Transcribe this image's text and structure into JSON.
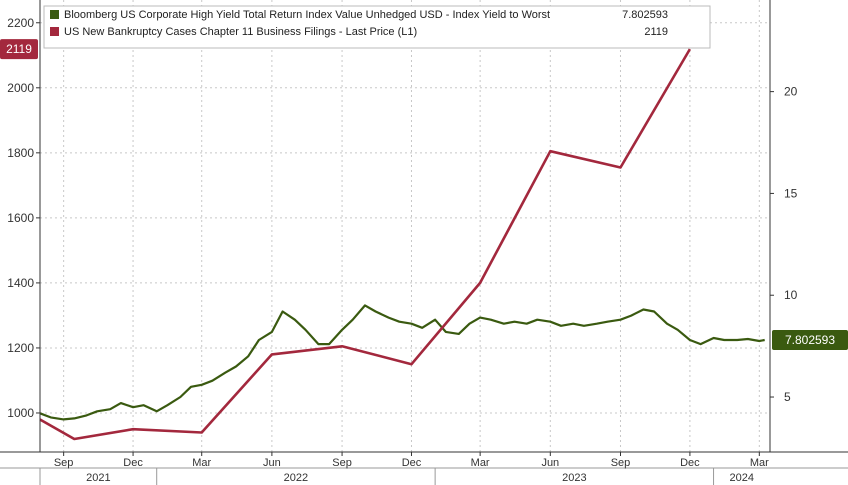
{
  "chart_data": {
    "type": "line",
    "legend_placement": "top-left",
    "grid": true,
    "x_range": [
      "2021-08-01",
      "2024-03-15"
    ],
    "y_left": {
      "label": "",
      "ticks": [
        1000,
        1200,
        1400,
        1600,
        1800,
        2000,
        2200
      ],
      "range": [
        880,
        2270
      ]
    },
    "y_right": {
      "label": "",
      "ticks": [
        5,
        10,
        15,
        20
      ],
      "range": [
        2.3,
        24.5
      ]
    },
    "x_month_labels": [
      {
        "date": "2021-09-01",
        "label": "Sep"
      },
      {
        "date": "2021-12-01",
        "label": "Dec"
      },
      {
        "date": "2022-03-01",
        "label": "Mar"
      },
      {
        "date": "2022-06-01",
        "label": "Jun"
      },
      {
        "date": "2022-09-01",
        "label": "Sep"
      },
      {
        "date": "2022-12-01",
        "label": "Dec"
      },
      {
        "date": "2023-03-01",
        "label": "Mar"
      },
      {
        "date": "2023-06-01",
        "label": "Jun"
      },
      {
        "date": "2023-09-01",
        "label": "Sep"
      },
      {
        "date": "2023-12-01",
        "label": "Dec"
      },
      {
        "date": "2024-03-01",
        "label": "Mar"
      }
    ],
    "x_year_labels": [
      {
        "start": "2021-08-01",
        "end": "2022-01-01",
        "label": "2021"
      },
      {
        "start": "2022-01-01",
        "end": "2023-01-01",
        "label": "2022"
      },
      {
        "start": "2023-01-01",
        "end": "2024-01-01",
        "label": "2023"
      },
      {
        "start": "2024-01-01",
        "end": "2024-03-15",
        "label": "2024"
      }
    ],
    "series": [
      {
        "name": "Bloomberg US Corporate High Yield Total Return Index Value Unhedged USD - Index Yield to Worst",
        "axis": "right",
        "color": "#3a5a10",
        "last_value": "7.802593",
        "points": [
          [
            "2021-08-01",
            4.2
          ],
          [
            "2021-08-15",
            4.0
          ],
          [
            "2021-09-01",
            3.9
          ],
          [
            "2021-09-15",
            3.95
          ],
          [
            "2021-10-01",
            4.1
          ],
          [
            "2021-10-15",
            4.3
          ],
          [
            "2021-11-01",
            4.4
          ],
          [
            "2021-11-15",
            4.7
          ],
          [
            "2021-12-01",
            4.5
          ],
          [
            "2021-12-15",
            4.6
          ],
          [
            "2022-01-01",
            4.3
          ],
          [
            "2022-01-15",
            4.6
          ],
          [
            "2022-02-01",
            5.0
          ],
          [
            "2022-02-15",
            5.5
          ],
          [
            "2022-03-01",
            5.6
          ],
          [
            "2022-03-15",
            5.8
          ],
          [
            "2022-04-01",
            6.2
          ],
          [
            "2022-04-15",
            6.5
          ],
          [
            "2022-05-01",
            7.0
          ],
          [
            "2022-05-15",
            7.8
          ],
          [
            "2022-06-01",
            8.2
          ],
          [
            "2022-06-15",
            9.2
          ],
          [
            "2022-07-01",
            8.8
          ],
          [
            "2022-07-15",
            8.3
          ],
          [
            "2022-08-01",
            7.6
          ],
          [
            "2022-08-15",
            7.6
          ],
          [
            "2022-09-01",
            8.3
          ],
          [
            "2022-09-15",
            8.8
          ],
          [
            "2022-10-01",
            9.5
          ],
          [
            "2022-10-15",
            9.2
          ],
          [
            "2022-11-01",
            8.9
          ],
          [
            "2022-11-15",
            8.7
          ],
          [
            "2022-12-01",
            8.6
          ],
          [
            "2022-12-15",
            8.4
          ],
          [
            "2023-01-01",
            8.8
          ],
          [
            "2023-01-15",
            8.2
          ],
          [
            "2023-02-01",
            8.1
          ],
          [
            "2023-02-15",
            8.6
          ],
          [
            "2023-03-01",
            8.9
          ],
          [
            "2023-03-15",
            8.8
          ],
          [
            "2023-04-01",
            8.6
          ],
          [
            "2023-04-15",
            8.7
          ],
          [
            "2023-05-01",
            8.6
          ],
          [
            "2023-05-15",
            8.8
          ],
          [
            "2023-06-01",
            8.7
          ],
          [
            "2023-06-15",
            8.5
          ],
          [
            "2023-07-01",
            8.6
          ],
          [
            "2023-07-15",
            8.5
          ],
          [
            "2023-08-01",
            8.6
          ],
          [
            "2023-08-15",
            8.7
          ],
          [
            "2023-09-01",
            8.8
          ],
          [
            "2023-09-15",
            9.0
          ],
          [
            "2023-10-01",
            9.3
          ],
          [
            "2023-10-15",
            9.2
          ],
          [
            "2023-11-01",
            8.6
          ],
          [
            "2023-11-15",
            8.3
          ],
          [
            "2023-12-01",
            7.8
          ],
          [
            "2023-12-15",
            7.6
          ],
          [
            "2024-01-01",
            7.9
          ],
          [
            "2024-01-15",
            7.8
          ],
          [
            "2024-02-01",
            7.8
          ],
          [
            "2024-02-15",
            7.85
          ],
          [
            "2024-03-01",
            7.75
          ],
          [
            "2024-03-08",
            7.8
          ]
        ]
      },
      {
        "name": "US New Bankruptcy Cases Chapter 11 Business Filings - Last Price (L1)",
        "axis": "left",
        "color": "#a3283d",
        "last_value": "2119",
        "points": [
          [
            "2021-08-01",
            980
          ],
          [
            "2021-09-15",
            920
          ],
          [
            "2021-12-01",
            950
          ],
          [
            "2022-03-01",
            940
          ],
          [
            "2022-06-01",
            1180
          ],
          [
            "2022-09-01",
            1205
          ],
          [
            "2022-12-01",
            1150
          ],
          [
            "2023-03-01",
            1400
          ],
          [
            "2023-06-01",
            1805
          ],
          [
            "2023-09-01",
            1755
          ],
          [
            "2023-12-01",
            2119
          ]
        ]
      }
    ]
  }
}
